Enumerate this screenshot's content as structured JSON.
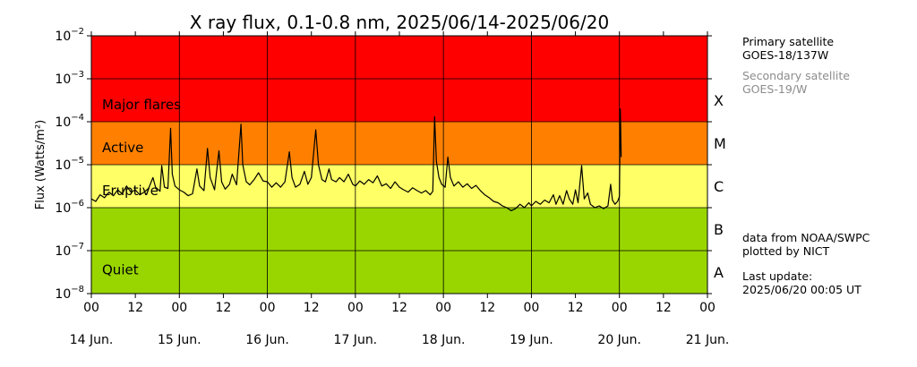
{
  "chart_data": {
    "type": "line",
    "title": "X ray flux, 0.1-0.8 nm, 2025/06/14-2025/06/20",
    "ylabel": "Flux (Watts/m²)",
    "yscale": "log",
    "ylim": [
      1e-08,
      0.01
    ],
    "xlim": [
      "2025-06-14 00:00",
      "2025-06-21 00:00"
    ],
    "grid": true,
    "y_ticks": [
      {
        "mant": "10",
        "exp": "−8"
      },
      {
        "mant": "10",
        "exp": "−7"
      },
      {
        "mant": "10",
        "exp": "−6"
      },
      {
        "mant": "10",
        "exp": "−5"
      },
      {
        "mant": "10",
        "exp": "−4"
      },
      {
        "mant": "10",
        "exp": "−3"
      },
      {
        "mant": "10",
        "exp": "−2"
      }
    ],
    "x_hour_ticks": [
      "00",
      "12",
      "00",
      "12",
      "00",
      "12",
      "00",
      "12",
      "00",
      "12",
      "00",
      "12",
      "00",
      "12",
      "00"
    ],
    "x_day_ticks": [
      "14 Jun.",
      "15 Jun.",
      "16 Jun.",
      "17 Jun.",
      "18 Jun.",
      "19 Jun.",
      "20 Jun.",
      "21 Jun."
    ],
    "bands": [
      {
        "label": "Major flares",
        "from": 0.0001,
        "to": 0.01,
        "color": "#ff0000"
      },
      {
        "label": "Active",
        "from": 1e-05,
        "to": 0.0001,
        "color": "#ff8000"
      },
      {
        "label": "Eruptive",
        "from": 1e-06,
        "to": 1e-05,
        "color": "#ffff66"
      },
      {
        "label": "Quiet",
        "from": 1e-08,
        "to": 1e-06,
        "color": "#99d600"
      }
    ],
    "class_letters": [
      {
        "letter": "X",
        "at": 0.0001
      },
      {
        "letter": "M",
        "at": 1e-05
      },
      {
        "letter": "C",
        "at": 1e-06
      },
      {
        "letter": "B",
        "at": 1e-07
      },
      {
        "letter": "A",
        "at": 1e-08
      }
    ],
    "series": [
      {
        "color": "#000000",
        "points": [
          [
            0.0,
            1.6e-06
          ],
          [
            0.05,
            1.4e-06
          ],
          [
            0.1,
            2e-06
          ],
          [
            0.15,
            1.7e-06
          ],
          [
            0.2,
            2.3e-06
          ],
          [
            0.25,
            1.9e-06
          ],
          [
            0.3,
            2.6e-06
          ],
          [
            0.35,
            2.1e-06
          ],
          [
            0.4,
            3.2e-06
          ],
          [
            0.45,
            2.3e-06
          ],
          [
            0.5,
            2.6e-06
          ],
          [
            0.55,
            2e-06
          ],
          [
            0.6,
            2.3e-06
          ],
          [
            0.65,
            2.8e-06
          ],
          [
            0.7,
            5e-06
          ],
          [
            0.73,
            3e-06
          ],
          [
            0.78,
            2.4e-06
          ],
          [
            0.8,
            9.5e-06
          ],
          [
            0.83,
            3e-06
          ],
          [
            0.87,
            2.8e-06
          ],
          [
            0.9,
            7e-05
          ],
          [
            0.92,
            6e-06
          ],
          [
            0.95,
            3.2e-06
          ],
          [
            1.0,
            2.6e-06
          ],
          [
            1.05,
            2.3e-06
          ],
          [
            1.1,
            1.9e-06
          ],
          [
            1.15,
            2.1e-06
          ],
          [
            1.2,
            8e-06
          ],
          [
            1.23,
            3.2e-06
          ],
          [
            1.28,
            2.5e-06
          ],
          [
            1.32,
            2.4e-05
          ],
          [
            1.35,
            5e-06
          ],
          [
            1.4,
            2.6e-06
          ],
          [
            1.45,
            2.1e-05
          ],
          [
            1.48,
            4e-06
          ],
          [
            1.52,
            2.7e-06
          ],
          [
            1.57,
            3.5e-06
          ],
          [
            1.6,
            6e-06
          ],
          [
            1.65,
            3.4e-06
          ],
          [
            1.7,
            8.8e-05
          ],
          [
            1.72,
            1e-05
          ],
          [
            1.76,
            4e-06
          ],
          [
            1.8,
            3.4e-06
          ],
          [
            1.85,
            4.5e-06
          ],
          [
            1.9,
            6.5e-06
          ],
          [
            1.95,
            4.2e-06
          ],
          [
            2.0,
            4e-06
          ],
          [
            2.05,
            3e-06
          ],
          [
            2.1,
            3.8e-06
          ],
          [
            2.15,
            3e-06
          ],
          [
            2.2,
            4e-06
          ],
          [
            2.25,
            2e-05
          ],
          [
            2.28,
            5e-06
          ],
          [
            2.32,
            3e-06
          ],
          [
            2.37,
            3.5e-06
          ],
          [
            2.42,
            7e-06
          ],
          [
            2.46,
            3.5e-06
          ],
          [
            2.5,
            5e-06
          ],
          [
            2.55,
            6.5e-05
          ],
          [
            2.58,
            1e-05
          ],
          [
            2.62,
            4.5e-06
          ],
          [
            2.66,
            4e-06
          ],
          [
            2.7,
            8e-06
          ],
          [
            2.73,
            4.5e-06
          ],
          [
            2.78,
            4e-06
          ],
          [
            2.82,
            5e-06
          ],
          [
            2.87,
            4e-06
          ],
          [
            2.92,
            6e-06
          ],
          [
            2.97,
            3.5e-06
          ],
          [
            3.0,
            3.2e-06
          ],
          [
            3.05,
            4.2e-06
          ],
          [
            3.1,
            3.5e-06
          ],
          [
            3.15,
            4.5e-06
          ],
          [
            3.2,
            3.8e-06
          ],
          [
            3.25,
            5.5e-06
          ],
          [
            3.3,
            3.2e-06
          ],
          [
            3.35,
            3.6e-06
          ],
          [
            3.4,
            2.8e-06
          ],
          [
            3.45,
            4e-06
          ],
          [
            3.5,
            3e-06
          ],
          [
            3.55,
            2.6e-06
          ],
          [
            3.6,
            2.3e-06
          ],
          [
            3.65,
            2.9e-06
          ],
          [
            3.7,
            2.5e-06
          ],
          [
            3.75,
            2.2e-06
          ],
          [
            3.8,
            2.5e-06
          ],
          [
            3.85,
            2e-06
          ],
          [
            3.88,
            2.4e-06
          ],
          [
            3.9,
            0.00013
          ],
          [
            3.92,
            1.2e-05
          ],
          [
            3.95,
            5e-06
          ],
          [
            3.98,
            3.5e-06
          ],
          [
            4.02,
            3e-06
          ],
          [
            4.05,
            1.5e-05
          ],
          [
            4.08,
            5e-06
          ],
          [
            4.12,
            3.2e-06
          ],
          [
            4.17,
            4e-06
          ],
          [
            4.22,
            3e-06
          ],
          [
            4.27,
            3.6e-06
          ],
          [
            4.32,
            2.8e-06
          ],
          [
            4.37,
            3.3e-06
          ],
          [
            4.42,
            2.5e-06
          ],
          [
            4.47,
            2e-06
          ],
          [
            4.52,
            1.7e-06
          ],
          [
            4.57,
            1.4e-06
          ],
          [
            4.62,
            1.3e-06
          ],
          [
            4.67,
            1.1e-06
          ],
          [
            4.72,
            1e-06
          ],
          [
            4.77,
            8.5e-07
          ],
          [
            4.82,
            9.5e-07
          ],
          [
            4.87,
            1.2e-06
          ],
          [
            4.92,
            1e-06
          ],
          [
            4.97,
            1.3e-06
          ],
          [
            5.0,
            1.1e-06
          ],
          [
            5.05,
            1.4e-06
          ],
          [
            5.1,
            1.2e-06
          ],
          [
            5.15,
            1.5e-06
          ],
          [
            5.2,
            1.3e-06
          ],
          [
            5.25,
            2e-06
          ],
          [
            5.28,
            1.2e-06
          ],
          [
            5.32,
            1.9e-06
          ],
          [
            5.36,
            1.2e-06
          ],
          [
            5.4,
            2.5e-06
          ],
          [
            5.43,
            1.6e-06
          ],
          [
            5.47,
            1.2e-06
          ],
          [
            5.5,
            2.6e-06
          ],
          [
            5.53,
            1.3e-06
          ],
          [
            5.57,
            9.5e-06
          ],
          [
            5.6,
            1.6e-06
          ],
          [
            5.64,
            2.2e-06
          ],
          [
            5.67,
            1.2e-06
          ],
          [
            5.72,
            1e-06
          ],
          [
            5.77,
            1.1e-06
          ],
          [
            5.82,
            9.5e-07
          ],
          [
            5.87,
            1.1e-06
          ],
          [
            5.9,
            3.5e-06
          ],
          [
            5.92,
            1.5e-06
          ],
          [
            5.95,
            1.2e-06
          ],
          [
            5.98,
            1.4e-06
          ],
          [
            6.0,
            1.8e-06
          ],
          [
            6.01,
            0.0002
          ],
          [
            6.02,
            1.5e-05
          ]
        ]
      }
    ]
  },
  "side": {
    "primary_label": "Primary satellite",
    "primary_sat": "GOES-18/137W",
    "secondary_label": "Secondary satellite",
    "secondary_sat": "GOES-19/W",
    "credit_1": "data from NOAA/SWPC",
    "credit_2": "plotted by NICT",
    "update_label": "Last update:",
    "update_value": "2025/06/20 00:05 UT"
  }
}
